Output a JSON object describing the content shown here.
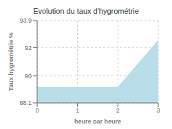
{
  "chart_data": {
    "type": "area",
    "title": "Evolution du taux d'hygrométrie",
    "xlabel": "heure par heure",
    "ylabel": "Taux hygrométrie %",
    "x": [
      0,
      0.05,
      2.0,
      3.0
    ],
    "values": [
      89.2,
      89.2,
      89.2,
      92.5
    ],
    "xlim": [
      0,
      3
    ],
    "ylim": [
      88.1,
      93.9
    ],
    "xticks": [
      0,
      1,
      2,
      3
    ],
    "yticks": [
      88.1,
      90,
      92,
      93.9
    ],
    "grid": true,
    "color": "#add8e6"
  }
}
